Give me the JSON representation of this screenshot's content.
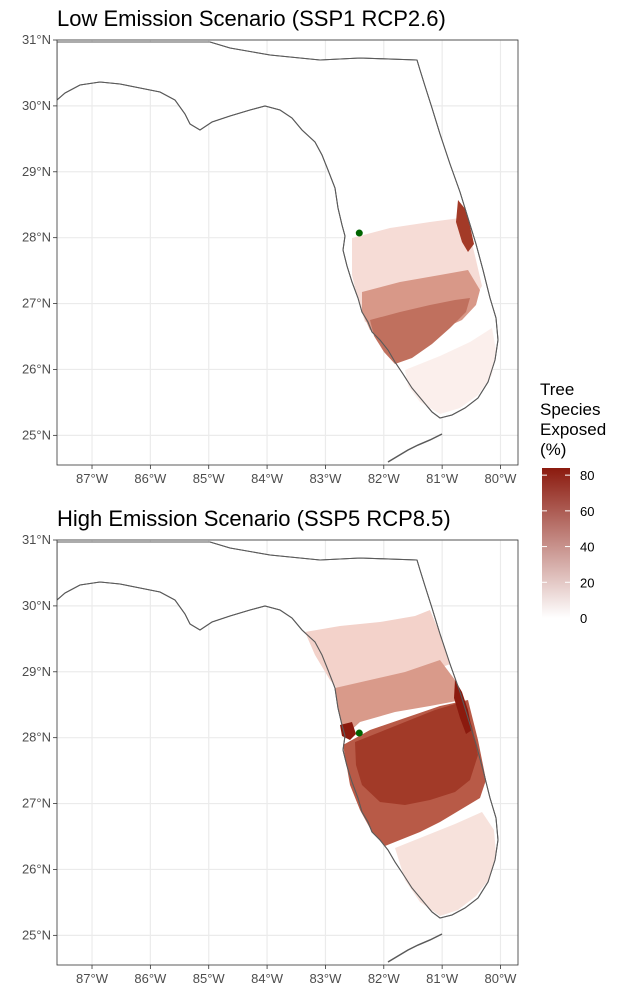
{
  "panels": [
    {
      "id": "top",
      "title": "Low Emission Scenario (SSP1 RCP2.6)"
    },
    {
      "id": "bottom",
      "title": "High Emission Scenario (SSP5 RCP8.5)"
    }
  ],
  "axes": {
    "lat_ticks": [
      "31°N",
      "30°N",
      "29°N",
      "28°N",
      "27°N",
      "26°N",
      "25°N"
    ],
    "lon_ticks": [
      "87°W",
      "86°W",
      "85°W",
      "84°W",
      "83°W",
      "82°W",
      "81°W",
      "80°W"
    ],
    "lat_range": [
      24.55,
      31.0
    ],
    "lon_range": [
      -87.6,
      -79.7
    ],
    "grid": true
  },
  "legend": {
    "title_lines": [
      "Tree",
      "Species",
      "Exposed",
      "(%)"
    ],
    "ticks": [
      "80",
      "60",
      "40",
      "20",
      "0"
    ],
    "range": [
      0,
      84
    ],
    "color_low": "#ffffff",
    "color_high": "#8b1a0e",
    "placement": "right"
  },
  "point": {
    "lat": 28.07,
    "lon": -82.42,
    "color": "#006400"
  },
  "colors": {
    "coast": "#5a5a5a",
    "grid": "#ebebeb",
    "panel_border": "#333333"
  }
}
